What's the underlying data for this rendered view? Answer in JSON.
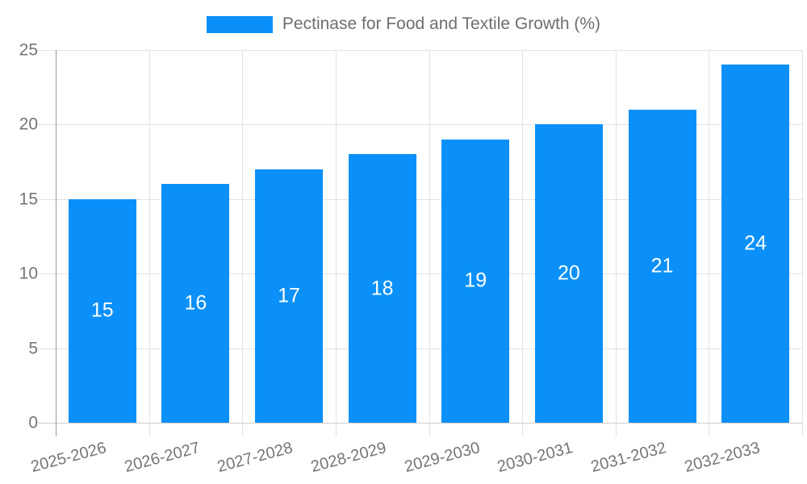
{
  "chart_data": {
    "type": "bar",
    "title": "",
    "legend": "Pectinase for Food and Textile Growth (%)",
    "legend_position": "top-center",
    "categories": [
      "2025-2026",
      "2026-2027",
      "2027-2028",
      "2028-2029",
      "2029-2030",
      "2030-2031",
      "2031-2032",
      "2032-2033"
    ],
    "values": [
      15,
      16,
      17,
      18,
      19,
      20,
      21,
      24
    ],
    "value_labels": [
      "15",
      "16",
      "17",
      "18",
      "19",
      "20",
      "21",
      "24"
    ],
    "xlabel": "",
    "ylabel": "",
    "ylim": [
      0,
      25
    ],
    "yticks": [
      0,
      5,
      10,
      15,
      20,
      25
    ],
    "grid": true,
    "colors": {
      "bar": "#0a90f8",
      "bar_label": "#ffffff",
      "gridline": "#e3e3e3",
      "x_axis_line": "#cccccc",
      "y_axis_line": "#999999",
      "tick_label": "#757575",
      "legend_text": "#6e6e6e",
      "background": "#ffffff"
    }
  }
}
